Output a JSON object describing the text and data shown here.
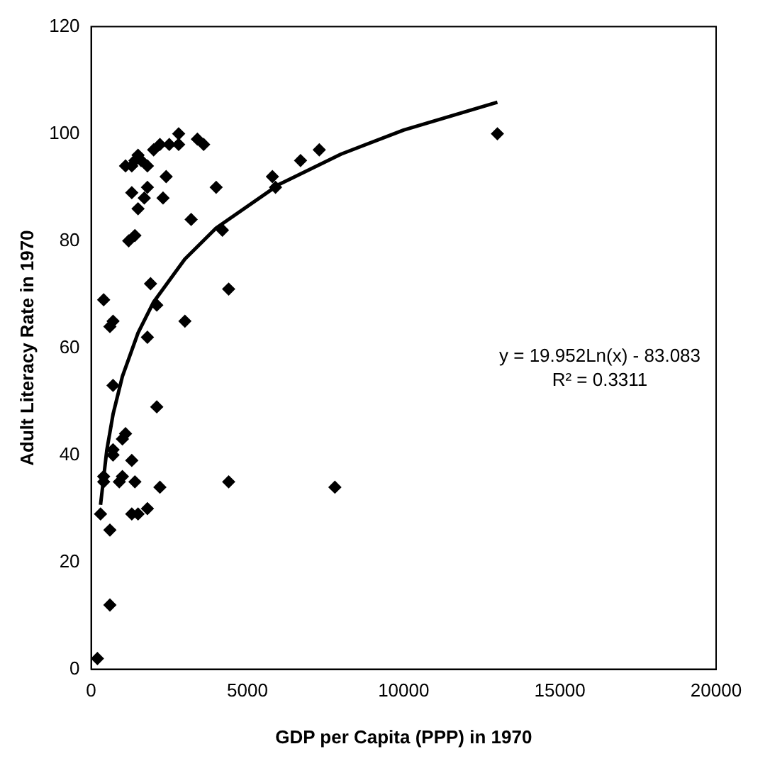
{
  "chart_data": {
    "type": "scatter",
    "xlabel": "GDP per Capita (PPP) in 1970",
    "ylabel": "Adult Literacy Rate in 1970",
    "xlim": [
      0,
      20000
    ],
    "xticks": [
      0,
      5000,
      10000,
      15000,
      20000
    ],
    "ylim": [
      0,
      120
    ],
    "yticks": [
      0,
      20,
      40,
      60,
      80,
      100,
      120
    ],
    "grid": false,
    "legend": false,
    "marker": "diamond",
    "series": [
      {
        "color": "#000000",
        "x": [
          13000,
          7800,
          7300,
          6700,
          5800,
          5900,
          4400,
          4400,
          4000,
          4200,
          3600,
          3400,
          3200,
          3000,
          2800,
          2800,
          2500,
          2400,
          2300,
          2200,
          2000,
          2100,
          2100,
          2200,
          1800,
          1800,
          1700,
          1800,
          1900,
          1800,
          1600,
          1500,
          1400,
          1300,
          1500,
          1400,
          1300,
          1200,
          1100,
          1300,
          1400,
          1300,
          1500,
          1100,
          1000,
          1000,
          900,
          700,
          700,
          600,
          700,
          700,
          600,
          400,
          400,
          300,
          400,
          600,
          200
        ],
        "values": [
          100,
          34,
          97,
          95,
          92,
          90,
          71,
          35,
          90,
          82,
          98,
          99,
          84,
          65,
          100,
          98,
          98,
          92,
          88,
          98,
          97,
          68,
          49,
          34,
          94,
          90,
          88,
          62,
          72,
          30,
          95,
          96,
          95,
          94,
          86,
          81,
          89,
          80,
          94,
          39,
          35,
          29,
          29,
          44,
          43,
          36,
          35,
          53,
          65,
          64,
          41,
          40,
          26,
          35,
          36,
          29,
          69,
          12,
          2
        ]
      },
      {
        "type": "line",
        "color": "#000000",
        "marker": "none",
        "x": [
          300,
          500,
          700,
          1000,
          1500,
          2000,
          3000,
          4000,
          6000,
          8000,
          10000,
          13000
        ],
        "values": [
          30.7,
          40.9,
          47.6,
          54.7,
          62.8,
          68.6,
          76.6,
          82.4,
          90.5,
          96.2,
          100.7,
          105.9
        ]
      }
    ],
    "annotations": [
      "y = 19.952Ln(x) - 83.083",
      "R² = 0.3311"
    ]
  }
}
